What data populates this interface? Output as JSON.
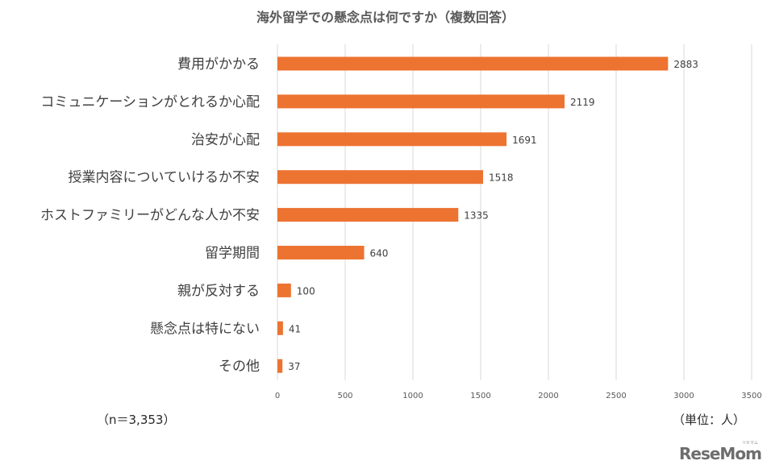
{
  "chart_data": {
    "type": "bar",
    "orientation": "horizontal",
    "title": "海外留学での懸念点は何ですか（複数回答）",
    "categories": [
      "費用がかかる",
      "コミュニケーションがとれるか心配",
      "治安が心配",
      "授業内容についていけるか不安",
      "ホストファミリーがどんな人か不安",
      "留学期間",
      "親が反対する",
      "懸念点は特にない",
      "その他"
    ],
    "values": [
      2883,
      2119,
      1691,
      1518,
      1335,
      640,
      100,
      41,
      37
    ],
    "xlim": [
      0,
      3500
    ],
    "xticks": [
      0,
      500,
      1000,
      1500,
      2000,
      2500,
      3000,
      3500
    ],
    "grid": true,
    "bar_color": "#ed7331",
    "grid_color": "#d9d9d9",
    "data_labels": true
  },
  "notes": {
    "sample": "（n＝3,353）",
    "unit": "（単位：人）"
  },
  "logo": {
    "text": "ReseMom",
    "ruby": "リセマム"
  }
}
